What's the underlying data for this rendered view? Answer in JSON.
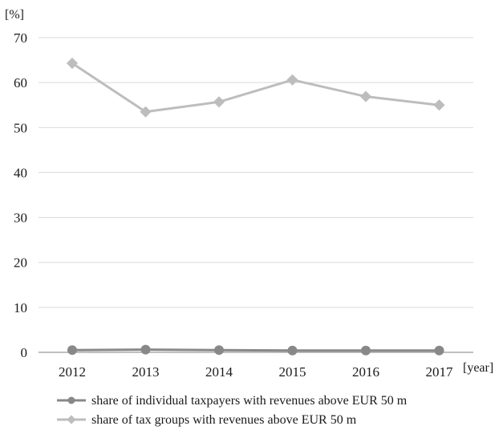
{
  "chart_data": {
    "type": "line",
    "y_unit": "[%]",
    "x_unit": "[year]",
    "categories": [
      "2012",
      "2013",
      "2014",
      "2015",
      "2016",
      "2017"
    ],
    "yticks": [
      "0",
      "10",
      "20",
      "30",
      "40",
      "50",
      "60",
      "70"
    ],
    "ylim": [
      0,
      70
    ],
    "grid": "horizontal",
    "legend_position": "bottom",
    "series": [
      {
        "name": "share of individual taxpayers with revenues above EUR 50 m",
        "values": [
          0.5,
          0.6,
          0.5,
          0.4,
          0.4,
          0.4
        ],
        "color": "#888888",
        "marker": "circle"
      },
      {
        "name": "share of tax groups with revenues above EUR 50 m",
        "values": [
          64.3,
          53.5,
          55.7,
          60.6,
          56.9,
          55.0
        ],
        "color": "#bdbdbd",
        "marker": "diamond"
      }
    ]
  }
}
